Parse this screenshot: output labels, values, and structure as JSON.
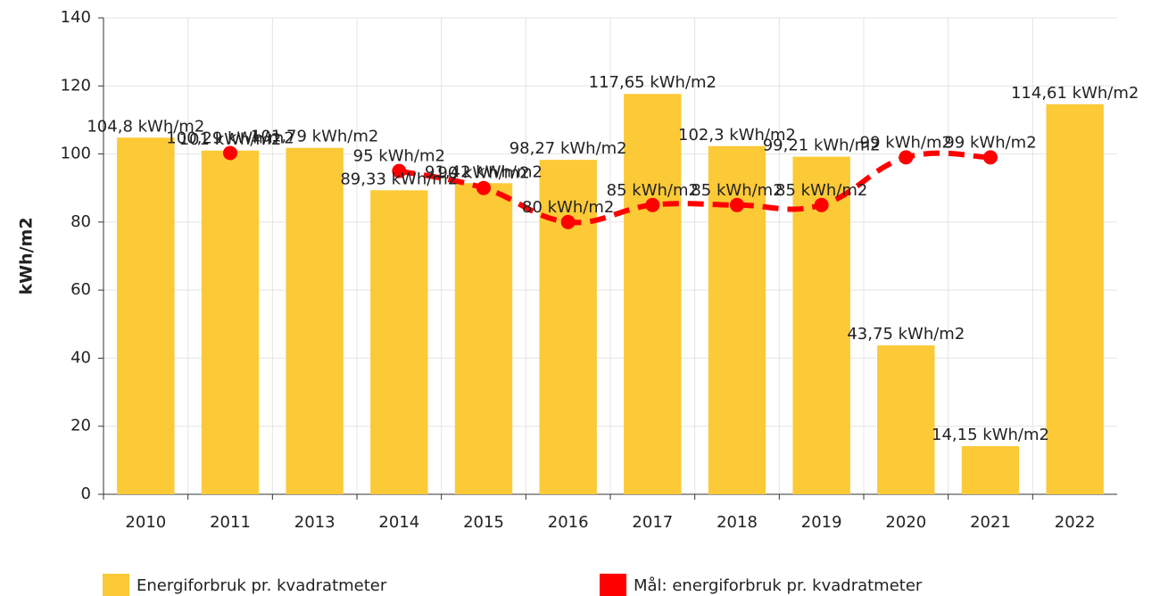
{
  "chart_data": {
    "type": "bar_line",
    "y_label": "kWh/m2",
    "categories": [
      "2010",
      "2011",
      "2013",
      "2014",
      "2015",
      "2016",
      "2017",
      "2018",
      "2019",
      "2020",
      "2021",
      "2022"
    ],
    "ylim": [
      0,
      140
    ],
    "yticks": [
      0,
      20,
      40,
      60,
      80,
      100,
      120,
      140
    ],
    "grid": true,
    "series": [
      {
        "name": "Energiforbruk pr. kvadratmeter",
        "type": "bar",
        "color": "#fcc937",
        "values": [
          104.8,
          101,
          101.79,
          89.33,
          91.42,
          98.27,
          117.65,
          102.3,
          99.21,
          43.75,
          14.15,
          114.61
        ],
        "value_labels": [
          "104,8 kWh/m2",
          "101 kWh/m2",
          "101,79 kWh/m2",
          "89,33 kWh/m2",
          "91,42 kWh/m2",
          "98,27 kWh/m2",
          "117,65 kWh/m2",
          "102,3 kWh/m2",
          "99,21 kWh/m2",
          "43,75 kWh/m2",
          "14,15 kWh/m2",
          "114,61 kWh/m2"
        ]
      },
      {
        "name": "Mål: energiforbruk pr. kvadratmeter",
        "type": "line",
        "color": "#ff0000",
        "values": [
          null,
          100.29,
          null,
          95,
          90,
          80,
          85,
          85,
          85,
          99,
          99,
          null
        ],
        "value_labels": [
          null,
          "100,29 kWh/m2",
          null,
          "95 kWh/m2",
          "90 kWh/m2",
          "80 kWh/m2",
          "85 kWh/m2",
          "85 kWh/m2",
          "85 kWh/m2",
          "99 kWh/m2",
          "99 kWh/m2",
          null
        ]
      }
    ]
  }
}
